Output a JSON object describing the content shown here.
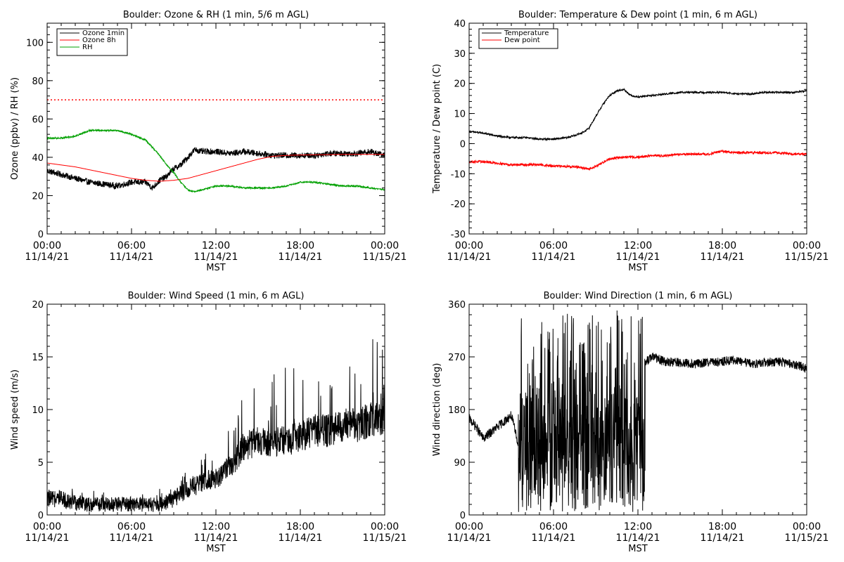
{
  "chart_data": [
    {
      "type": "line",
      "title": "Boulder: Ozone & RH (1 min, 5/6 m AGL)",
      "ylabel": "Ozone (ppbv) / RH (%)",
      "xlabel": "MST",
      "ylim": [
        0,
        110
      ],
      "yticks": [
        0,
        20,
        40,
        60,
        80,
        100
      ],
      "xlim_hours": [
        0,
        24
      ],
      "xticks": [
        {
          "hour": 0,
          "time": "00:00",
          "date": "11/14/21"
        },
        {
          "hour": 6,
          "time": "06:00",
          "date": "11/14/21"
        },
        {
          "hour": 12,
          "time": "12:00",
          "date": "11/14/21"
        },
        {
          "hour": 18,
          "time": "18:00",
          "date": "11/14/21"
        },
        {
          "hour": 24,
          "time": "00:00",
          "date": "11/15/21"
        }
      ],
      "legend": "top-left",
      "reference_lines": [
        {
          "y": 70,
          "color": "#ff0000",
          "style": "dotted"
        }
      ],
      "series": [
        {
          "name": "Ozone 1min",
          "color": "#000000",
          "noise": 1.6,
          "x": [
            0,
            1,
            2,
            3,
            4,
            5,
            6,
            7,
            7.5,
            8,
            8.5,
            9,
            9.5,
            10,
            10.5,
            11,
            12,
            13,
            14,
            15,
            16,
            17,
            18,
            19,
            20,
            21,
            22,
            23,
            24
          ],
          "y": [
            33,
            31,
            29,
            27,
            26,
            25,
            27,
            27,
            24,
            28,
            30,
            34,
            36,
            40,
            44,
            43,
            43,
            42,
            43,
            42,
            41,
            41,
            41,
            41,
            42,
            42,
            42,
            43,
            41
          ]
        },
        {
          "name": "Ozone 8h",
          "color": "#ff0000",
          "noise": 0,
          "x": [
            0,
            1,
            2,
            3,
            4,
            5,
            6,
            7,
            8,
            9,
            10,
            11,
            12,
            13,
            14,
            15,
            16,
            17,
            18,
            19,
            20,
            21,
            22,
            23,
            24
          ],
          "y": [
            37,
            36,
            35,
            33.5,
            32,
            30.5,
            29,
            28,
            27.5,
            28,
            29,
            31,
            33,
            35,
            37,
            39,
            40.5,
            41,
            41.2,
            41.3,
            41.4,
            41.5,
            41.5,
            41.5,
            41.5
          ]
        },
        {
          "name": "RH",
          "color": "#00a000",
          "noise": 0.4,
          "x": [
            0,
            1,
            2,
            3,
            4,
            5,
            6,
            7,
            8,
            8.5,
            9,
            9.5,
            10,
            10.5,
            11,
            12,
            13,
            14,
            15,
            16,
            17,
            18,
            19,
            20,
            21,
            22,
            23,
            24
          ],
          "y": [
            50,
            50,
            51,
            54,
            54,
            54,
            52,
            49,
            41,
            36,
            32,
            27,
            23,
            22,
            23,
            25,
            25,
            24,
            24,
            24,
            25,
            27,
            27,
            26,
            25,
            25,
            24,
            23
          ]
        }
      ]
    },
    {
      "type": "line",
      "title": "Boulder: Temperature & Dew point (1 min, 6 m AGL)",
      "ylabel": "Temperature / Dew point (C)",
      "xlabel": "MST",
      "ylim": [
        -30,
        40
      ],
      "yticks": [
        -30,
        -20,
        -10,
        0,
        10,
        20,
        30,
        40
      ],
      "xlim_hours": [
        0,
        24
      ],
      "xticks": [
        {
          "hour": 0,
          "time": "00:00",
          "date": "11/14/21"
        },
        {
          "hour": 6,
          "time": "06:00",
          "date": "11/14/21"
        },
        {
          "hour": 12,
          "time": "12:00",
          "date": "11/14/21"
        },
        {
          "hour": 18,
          "time": "18:00",
          "date": "11/14/21"
        },
        {
          "hour": 24,
          "time": "00:00",
          "date": "11/15/21"
        }
      ],
      "legend": "top-left",
      "series": [
        {
          "name": "Temperature",
          "color": "#000000",
          "noise": 0.3,
          "x": [
            0,
            1,
            2,
            3,
            4,
            5,
            6,
            7,
            8,
            8.5,
            9,
            9.5,
            10,
            10.5,
            11,
            11.5,
            12,
            13,
            14,
            15,
            16,
            17,
            18,
            19,
            20,
            21,
            22,
            23,
            24
          ],
          "y": [
            4,
            3.5,
            2.5,
            2,
            2,
            1.5,
            1.5,
            2,
            3.5,
            5,
            9,
            13,
            16,
            17.5,
            18,
            16,
            15.5,
            16,
            16.5,
            17,
            17,
            17,
            17,
            16.5,
            16.5,
            17,
            17,
            17,
            17.5
          ]
        },
        {
          "name": "Dew point",
          "color": "#ff0000",
          "noise": 0.4,
          "x": [
            0,
            1,
            2,
            3,
            4,
            5,
            6,
            7,
            8,
            8.5,
            9,
            10,
            11,
            12,
            13,
            14,
            15,
            16,
            17,
            18,
            19,
            20,
            21,
            22,
            23,
            24
          ],
          "y": [
            -6,
            -6,
            -6.5,
            -7,
            -7,
            -7,
            -7.5,
            -7.5,
            -8,
            -8.5,
            -7.5,
            -5,
            -4.5,
            -4.5,
            -4,
            -4,
            -3.5,
            -3.5,
            -3.5,
            -2.5,
            -3,
            -3,
            -3,
            -3,
            -3.5,
            -3.5
          ]
        }
      ]
    },
    {
      "type": "line",
      "title": "Boulder: Wind Speed (1 min, 6 m AGL)",
      "ylabel": "Wind speed (m/s)",
      "xlabel": "MST",
      "ylim": [
        0,
        20
      ],
      "yticks": [
        0,
        5,
        10,
        15,
        20
      ],
      "xlim_hours": [
        0,
        24
      ],
      "xticks": [
        {
          "hour": 0,
          "time": "00:00",
          "date": "11/14/21"
        },
        {
          "hour": 6,
          "time": "06:00",
          "date": "11/14/21"
        },
        {
          "hour": 12,
          "time": "12:00",
          "date": "11/14/21"
        },
        {
          "hour": 18,
          "time": "18:00",
          "date": "11/14/21"
        },
        {
          "hour": 24,
          "time": "00:00",
          "date": "11/15/21"
        }
      ],
      "series": [
        {
          "name": "",
          "color": "#000000",
          "noise": 1.0,
          "spiky": true,
          "x": [
            0,
            1,
            2,
            3,
            4,
            5,
            6,
            7,
            8,
            9,
            10,
            11,
            12,
            13,
            14,
            15,
            16,
            17,
            18,
            19,
            20,
            21,
            22,
            23,
            24
          ],
          "y": [
            1.5,
            1.5,
            1.2,
            1,
            1,
            1,
            1,
            1,
            1,
            1.5,
            2.5,
            3,
            3.5,
            4.5,
            6.5,
            7,
            7,
            7,
            7.5,
            8,
            8,
            8.5,
            8.5,
            9,
            9
          ]
        }
      ]
    },
    {
      "type": "line",
      "title": "Boulder: Wind Direction (1 min, 6 m AGL)",
      "ylabel": "Wind direction (deg)",
      "xlabel": "MST",
      "ylim": [
        0,
        360
      ],
      "yticks": [
        0,
        90,
        180,
        270,
        360
      ],
      "xlim_hours": [
        0,
        24
      ],
      "xticks": [
        {
          "hour": 0,
          "time": "00:00",
          "date": "11/14/21"
        },
        {
          "hour": 6,
          "time": "06:00",
          "date": "11/14/21"
        },
        {
          "hour": 12,
          "time": "12:00",
          "date": "11/14/21"
        },
        {
          "hour": 18,
          "time": "18:00",
          "date": "11/14/21"
        },
        {
          "hour": 24,
          "time": "00:00",
          "date": "11/15/21"
        }
      ],
      "series": [
        {
          "name": "",
          "color": "#000000",
          "noise": 8,
          "x": [
            0,
            0.5,
            1,
            1.5,
            2,
            2.5,
            3,
            3.2,
            3.5,
            12.5,
            13,
            14,
            15,
            16,
            17,
            18,
            19,
            20,
            21,
            22,
            23,
            24
          ],
          "y": [
            165,
            150,
            130,
            140,
            150,
            160,
            170,
            150,
            120,
            260,
            270,
            262,
            260,
            258,
            260,
            262,
            265,
            258,
            260,
            262,
            258,
            250
          ],
          "chaos": {
            "start": 3.5,
            "end": 12.5,
            "min": 5,
            "max": 350
          }
        }
      ]
    }
  ]
}
